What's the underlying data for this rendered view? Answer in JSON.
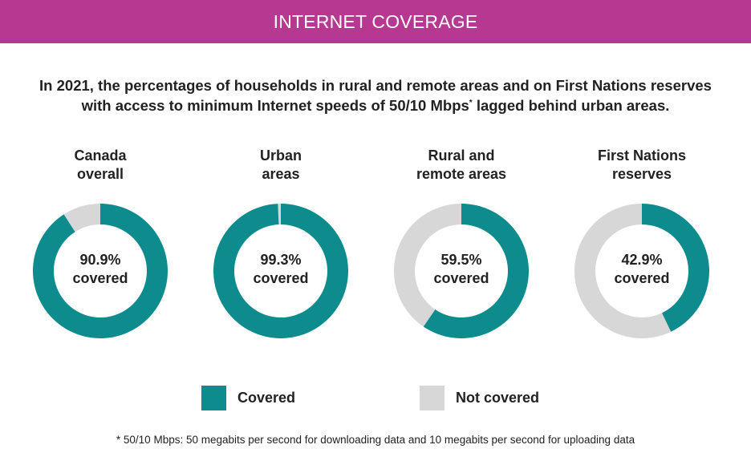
{
  "header": {
    "title": "INTERNET COVERAGE"
  },
  "intro": {
    "line1": "In 2021, the percentages of households in rural and remote areas and on First Nations reserves",
    "line2_a": "with access to minimum Internet speeds of 50/10 Mbps",
    "line2_sup": "*",
    "line2_b": " lagged behind urban areas."
  },
  "colors": {
    "header": "#b73891",
    "covered": "#0e8b8c",
    "not_covered": "#d7d7d8"
  },
  "chart_data": {
    "type": "pie",
    "subtype": "donut",
    "unit": "%",
    "series": [
      {
        "name": "Covered",
        "color": "#0e8b8c"
      },
      {
        "name": "Not covered",
        "color": "#d7d7d8"
      }
    ],
    "charts": [
      {
        "title_line1": "Canada",
        "title_line2": "overall",
        "covered": 90.9,
        "not_covered": 9.1,
        "value_label": "90.9%",
        "center_text": "covered"
      },
      {
        "title_line1": "Urban",
        "title_line2": "areas",
        "covered": 99.3,
        "not_covered": 0.7,
        "value_label": "99.3%",
        "center_text": "covered"
      },
      {
        "title_line1": "Rural and",
        "title_line2": "remote areas",
        "covered": 59.5,
        "not_covered": 40.5,
        "value_label": "59.5%",
        "center_text": "covered"
      },
      {
        "title_line1": "First Nations",
        "title_line2": "reserves",
        "covered": 42.9,
        "not_covered": 57.1,
        "value_label": "42.9%",
        "center_text": "covered"
      }
    ]
  },
  "legend": {
    "covered_label": "Covered",
    "not_covered_label": "Not covered"
  },
  "footnote": "* 50/10 Mbps: 50 megabits per second for downloading data and 10 megabits per second for uploading data"
}
